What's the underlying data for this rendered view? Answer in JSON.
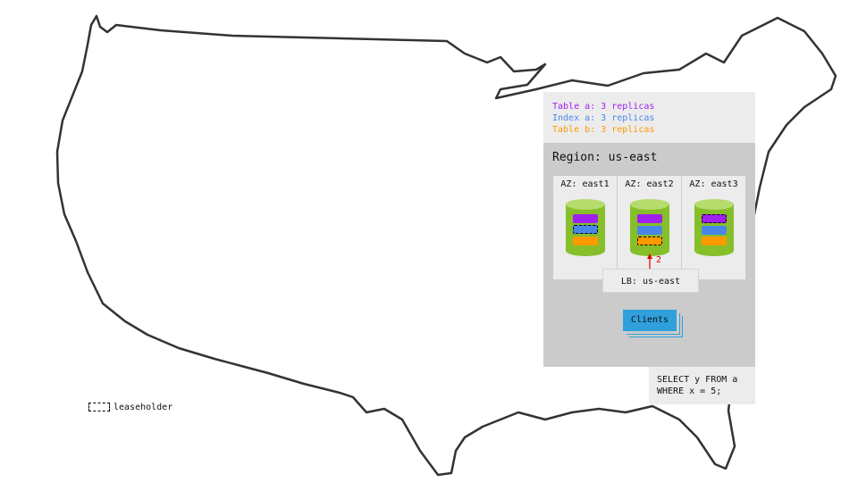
{
  "replica_legend": [
    {
      "text": "Table a: 3 replicas",
      "color": "#a020f0"
    },
    {
      "text": "Index a: 3 replicas",
      "color": "#4a86e8"
    },
    {
      "text": "Table b: 3 replicas",
      "color": "#ff9900"
    }
  ],
  "region": {
    "title": "Region: us-east"
  },
  "azs": [
    {
      "label": "AZ: east1",
      "leaseholder": "index-a"
    },
    {
      "label": "AZ: east2",
      "leaseholder": "table-b"
    },
    {
      "label": "AZ: east3",
      "leaseholder": "table-a"
    }
  ],
  "arrow_label": "2",
  "load_balancer": "LB: us-east",
  "clients": "Clients",
  "query": {
    "line1": "SELECT y FROM a",
    "line2": "WHERE x = 5;"
  },
  "leaseholder_legend": "leaseholder",
  "colors": {
    "table_a": "#a020f0",
    "index_a": "#4a86e8",
    "table_b": "#ff9900",
    "node": "#86bf2a",
    "clients": "#2fa0dc",
    "arrow": "#e00000"
  }
}
